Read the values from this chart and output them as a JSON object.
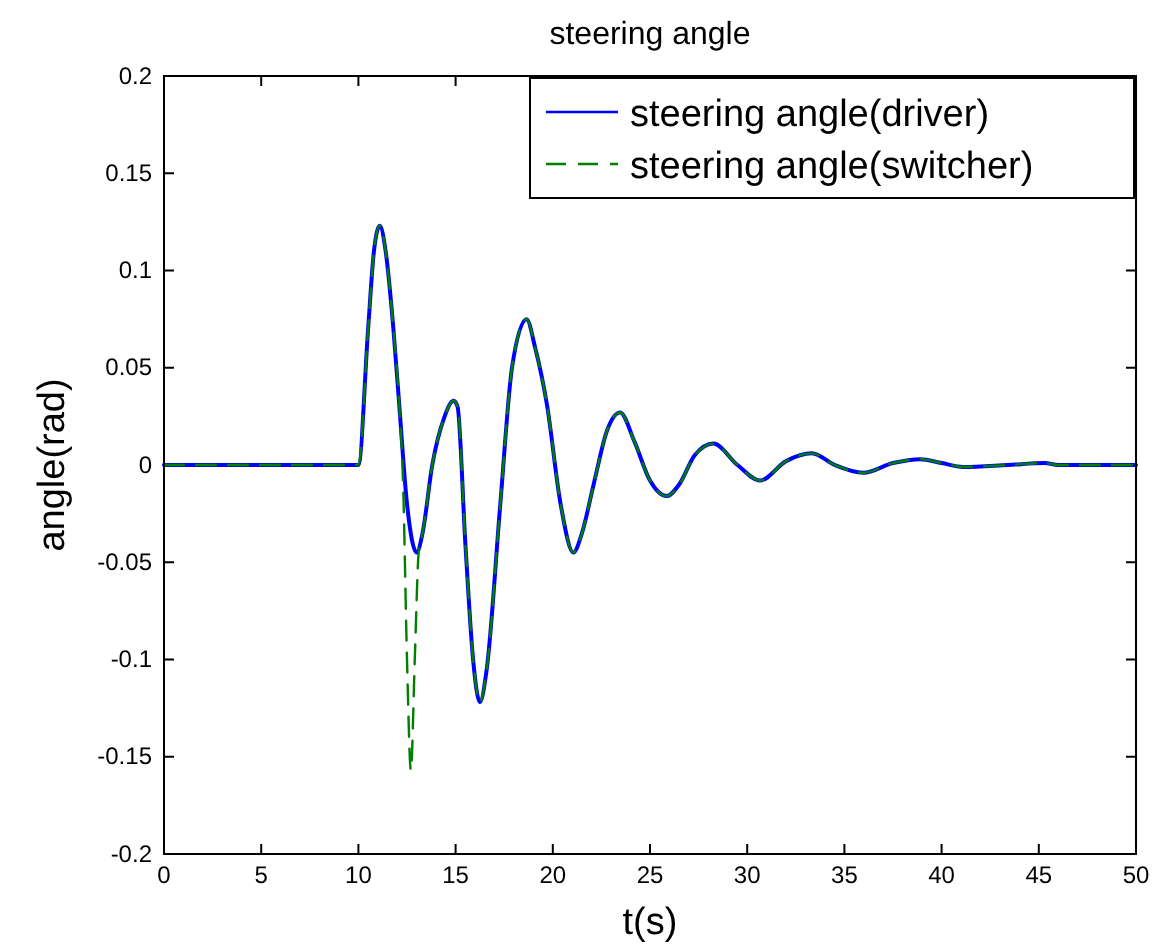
{
  "chart_data": {
    "type": "line",
    "title": "steering angle",
    "xlabel": "t(s)",
    "ylabel": "angle(rad)",
    "xlim": [
      0,
      50
    ],
    "ylim": [
      -0.2,
      0.2
    ],
    "xticks": [
      0,
      5,
      10,
      15,
      20,
      25,
      30,
      35,
      40,
      45,
      50
    ],
    "yticks": [
      -0.2,
      -0.15,
      -0.1,
      -0.05,
      0,
      0.05,
      0.1,
      0.15,
      0.2
    ],
    "legend": "top right",
    "series": [
      {
        "name": "steering angle(driver)",
        "color": "#0000ff",
        "line_style": "solid",
        "x": [
          0,
          10,
          10.5,
          10.8,
          11.1,
          11.4,
          11.8,
          12.1,
          12.5,
          13.0,
          13.3,
          13.8,
          14.4,
          14.9,
          15.1,
          15.5,
          15.9,
          16.25,
          16.6,
          17.3,
          17.9,
          18.65,
          19.1,
          19.7,
          20.4,
          21.06,
          21.5,
          22.1,
          22.8,
          23.46,
          24.2,
          25.0,
          25.85,
          26.5,
          27.3,
          28.26,
          29.5,
          30.66,
          32,
          33.33,
          34.5,
          35.97,
          37.5,
          38.9,
          40,
          41.1,
          43.4,
          45.3,
          46,
          50
        ],
        "values": [
          0,
          0,
          0.07,
          0.11,
          0.123,
          0.11,
          0.07,
          0.031,
          -0.02,
          -0.045,
          -0.035,
          0,
          0.024,
          0.033,
          0.03,
          -0.04,
          -0.1,
          -0.122,
          -0.105,
          -0.02,
          0.05,
          0.075,
          0.06,
          0.031,
          -0.02,
          -0.045,
          -0.035,
          -0.01,
          0.018,
          0.027,
          0.012,
          -0.008,
          -0.016,
          -0.01,
          0.005,
          0.011,
          0,
          -0.008,
          0.002,
          0.006,
          0,
          -0.004,
          0.001,
          0.003,
          0.001,
          -0.001,
          0,
          0.001,
          0,
          0
        ]
      },
      {
        "name": "steering angle(switcher)",
        "color": "#007f00",
        "line_style": "dashed",
        "x": [
          0,
          10,
          10.5,
          10.8,
          11.1,
          11.4,
          11.8,
          12.1,
          12.3,
          12.5,
          12.7,
          12.9,
          13.1,
          13.3,
          13.8,
          14.4,
          14.9,
          15.1,
          15.5,
          15.9,
          16.25,
          16.6,
          17.3,
          17.9,
          18.65,
          19.1,
          19.7,
          20.4,
          21.06,
          21.5,
          22.1,
          22.8,
          23.46,
          24.2,
          25.0,
          25.85,
          26.5,
          27.3,
          28.26,
          29.5,
          30.66,
          32,
          33.33,
          34.5,
          35.97,
          37.5,
          38.9,
          40,
          41.1,
          43.4,
          45.3,
          46,
          50
        ],
        "values": [
          0,
          0,
          0.07,
          0.11,
          0.123,
          0.11,
          0.07,
          0.031,
          -0.01,
          -0.1,
          -0.157,
          -0.1,
          -0.045,
          -0.035,
          0,
          0.024,
          0.033,
          0.03,
          -0.04,
          -0.1,
          -0.122,
          -0.105,
          -0.02,
          0.05,
          0.075,
          0.06,
          0.031,
          -0.02,
          -0.045,
          -0.035,
          -0.01,
          0.018,
          0.027,
          0.012,
          -0.008,
          -0.016,
          -0.01,
          0.005,
          0.011,
          0,
          -0.008,
          0.002,
          0.006,
          0,
          -0.004,
          0.001,
          0.003,
          0.001,
          -0.001,
          0,
          0.001,
          0,
          0
        ]
      }
    ]
  }
}
